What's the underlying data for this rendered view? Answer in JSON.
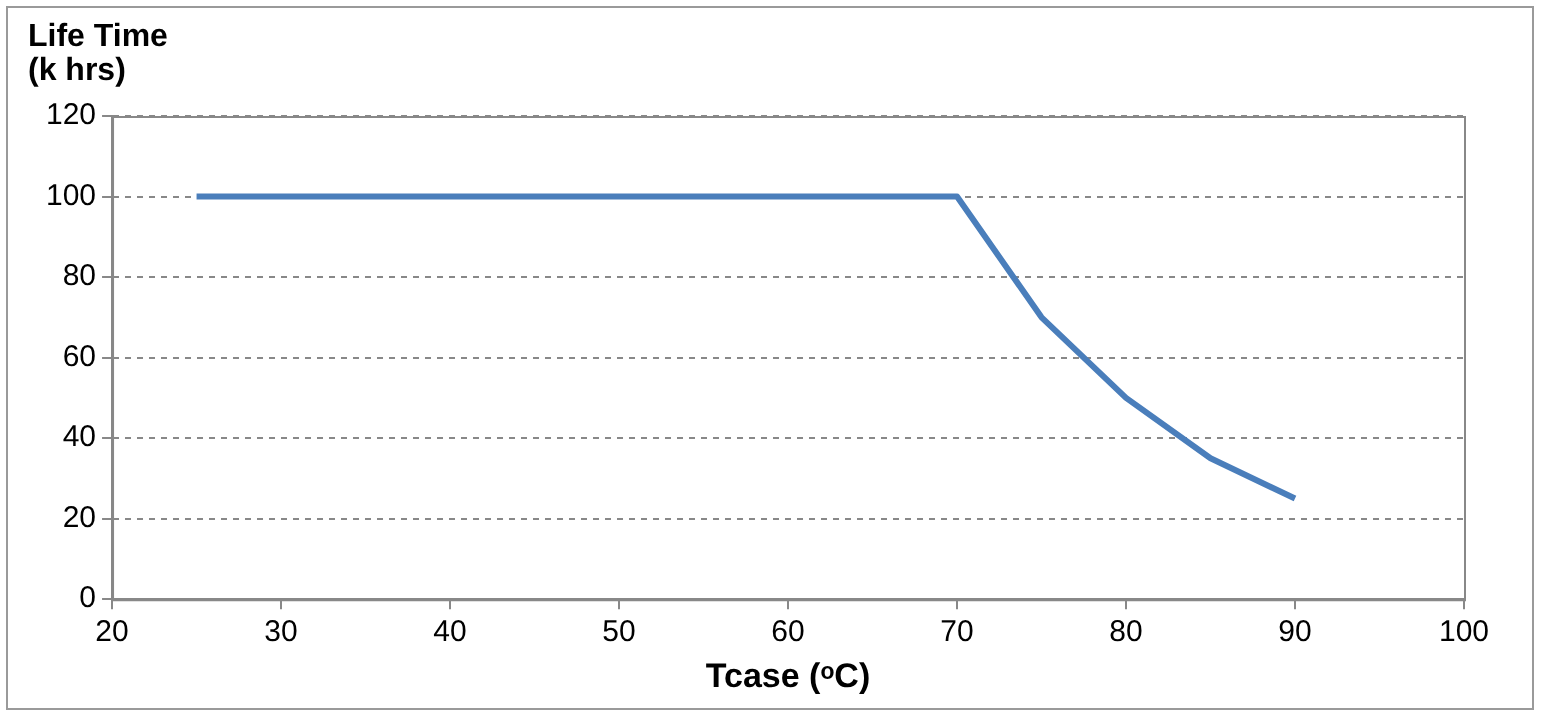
{
  "chart_data": {
    "type": "line",
    "xlabel": "Tcase (ᵒC)",
    "ylabel": "Life Time (k hrs)",
    "x": [
      25,
      70,
      75,
      80,
      85,
      90
    ],
    "series": [
      {
        "color": "#4a7ebb",
        "values": [
          100,
          100,
          70,
          50,
          35,
          25
        ]
      }
    ],
    "xlim": [
      20,
      100
    ],
    "xticks": [
      20,
      30,
      40,
      50,
      60,
      70,
      80,
      90,
      100
    ],
    "ylim": [
      0,
      120
    ],
    "yticks": [
      0,
      20,
      40,
      60,
      80,
      100,
      120
    ],
    "grid": "y",
    "legend": false,
    "marker": "none",
    "line_style": "solid"
  }
}
